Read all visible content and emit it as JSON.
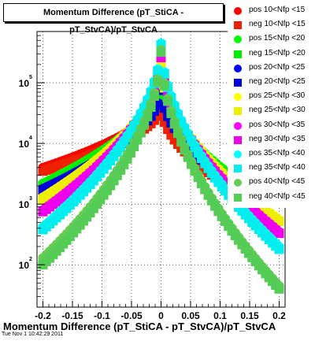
{
  "title": "Momentum Difference (pT_StiCA - pT_StvCA)/pT_StvCA",
  "timestamp": "Tue Nov  1 10:42:29 2011",
  "chart_data": {
    "type": "scatter",
    "title": "Momentum Difference (pT_StiCA - pT_StvCA)/pT_StvCA",
    "xlabel": "Momentum Difference (pT_StiCA - pT_StvCA)/pT_StvCA",
    "ylabel": "",
    "xlim": [
      -0.21,
      0.21
    ],
    "ylim": [
      20,
      700000
    ],
    "yscale": "log",
    "grid": true,
    "legend_position": "top-right",
    "x_ticks": [
      -0.2,
      -0.15,
      -0.1,
      -0.05,
      0,
      0.05,
      0.1,
      0.15,
      0.2
    ],
    "x_tick_labels": [
      "-0.2",
      "-0.15",
      "-0.1",
      "-0.05",
      "0",
      "0.05",
      "0.1",
      "0.15",
      "0.2"
    ],
    "y_ticks": [
      100,
      1000,
      10000,
      100000
    ],
    "y_tick_labels": [
      "10",
      "10",
      "10",
      "10"
    ],
    "y_tick_exponents": [
      "2",
      "3",
      "4",
      "5"
    ],
    "series": [
      {
        "name": "pos 10<Nfp <15",
        "color": "#ff0000",
        "marker": "circle",
        "peak": 60000,
        "left_edge": 4000,
        "right_edge": 700,
        "cut": 0.11
      },
      {
        "name": "neg 10<Nfp <15",
        "color": "#ee2200",
        "marker": "square",
        "peak": 40000,
        "left_edge": 3500,
        "right_edge": 650,
        "cut": 0.11
      },
      {
        "name": "pos 15<Nfp <20",
        "color": "#00ff00",
        "marker": "circle",
        "peak": 110000,
        "left_edge": 2200,
        "right_edge": 900,
        "cut": 0.13
      },
      {
        "name": "neg 15<Nfp <20",
        "color": "#00ee00",
        "marker": "square",
        "peak": 100000,
        "left_edge": 2000,
        "right_edge": 850,
        "cut": 0.13
      },
      {
        "name": "pos 20<Nfp <25",
        "color": "#0000ff",
        "marker": "circle",
        "peak": 80000,
        "left_edge": 1800,
        "right_edge": 700,
        "cut": 0.13
      },
      {
        "name": "neg 20<Nfp <25",
        "color": "#0000dd",
        "marker": "square",
        "peak": 75000,
        "left_edge": 1700,
        "right_edge": 650,
        "cut": 0.13
      },
      {
        "name": "pos 25<Nfp <30",
        "color": "#ffff00",
        "marker": "circle",
        "peak": 200000,
        "left_edge": 1300,
        "right_edge": 550,
        "cut": 0.2
      },
      {
        "name": "neg 25<Nfp <30",
        "color": "#eeee00",
        "marker": "square",
        "peak": 190000,
        "left_edge": 1200,
        "right_edge": 520,
        "cut": 0.2
      },
      {
        "name": "pos 30<Nfp <35",
        "color": "#ff00ff",
        "marker": "circle",
        "peak": 280000,
        "left_edge": 800,
        "right_edge": 350,
        "cut": 0.2
      },
      {
        "name": "neg 30<Nfp <35",
        "color": "#ee00ee",
        "marker": "square",
        "peak": 260000,
        "left_edge": 750,
        "right_edge": 330,
        "cut": 0.2
      },
      {
        "name": "pos 35<Nfp <40",
        "color": "#00ffff",
        "marker": "circle",
        "peak": 450000,
        "left_edge": 420,
        "right_edge": 200,
        "cut": 0.2
      },
      {
        "name": "neg 35<Nfp <40",
        "color": "#00eeee",
        "marker": "square",
        "peak": 420000,
        "left_edge": 380,
        "right_edge": 180,
        "cut": 0.2
      },
      {
        "name": "pos 40<Nfp <45",
        "color": "#66cc55",
        "marker": "circle",
        "peak": 350000,
        "left_edge": 130,
        "right_edge": 45,
        "cut": 0.2
      },
      {
        "name": "neg 40<Nfp <45",
        "color": "#55cc55",
        "marker": "square",
        "peak": 320000,
        "left_edge": 100,
        "right_edge": 40,
        "cut": 0.2
      }
    ]
  }
}
